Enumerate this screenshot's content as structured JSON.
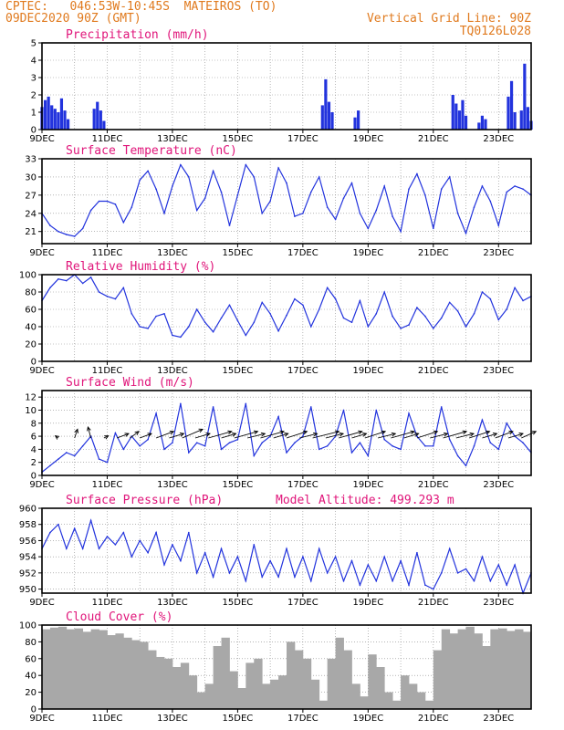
{
  "header": {
    "line1": "CPTEC:   046:53W-10:45S  MATEIROS (TO)",
    "line2": "09DEC2020 90Z (GMT)",
    "right1": "Vertical Grid Line: 90Z",
    "right2": "TQ0126L028"
  },
  "colors": {
    "header": "#e07a1e",
    "title": "#e0157a",
    "series": "#2233dd",
    "cloud": "#a8a8a8",
    "arrows": "#000000"
  },
  "chart_data": [
    {
      "type": "bar",
      "title": "Precipitation (mm/h)",
      "x_ticks": [
        "9DEC",
        "11DEC",
        "13DEC",
        "15DEC",
        "17DEC",
        "19DEC",
        "21DEC",
        "23DEC"
      ],
      "ylim": [
        0,
        5
      ],
      "y_ticks": [
        0,
        1,
        2,
        3,
        4,
        5
      ],
      "x": [
        9.0,
        9.1,
        9.2,
        9.3,
        9.4,
        9.5,
        9.6,
        9.7,
        9.8,
        10.6,
        10.7,
        10.8,
        10.9,
        17.6,
        17.7,
        17.8,
        17.9,
        18.6,
        18.7,
        21.6,
        21.7,
        21.8,
        21.9,
        22.0,
        22.4,
        22.5,
        22.6,
        23.3,
        23.4,
        23.5,
        23.7,
        23.8,
        23.9,
        24.0
      ],
      "values": [
        1.3,
        1.7,
        1.9,
        1.4,
        1.2,
        1.0,
        1.8,
        1.1,
        0.6,
        1.2,
        1.6,
        1.1,
        0.5,
        1.4,
        2.9,
        1.6,
        1.0,
        0.7,
        1.1,
        2.0,
        1.5,
        1.1,
        1.7,
        0.8,
        0.4,
        0.8,
        0.6,
        1.9,
        2.8,
        1.0,
        1.1,
        3.8,
        1.3,
        0.5
      ]
    },
    {
      "type": "line",
      "title": "Surface Temperature (nC)",
      "x_ticks": [
        "9DEC",
        "11DEC",
        "13DEC",
        "15DEC",
        "17DEC",
        "19DEC",
        "21DEC",
        "23DEC"
      ],
      "ylim": [
        19,
        33
      ],
      "y_ticks": [
        21,
        24,
        27,
        30,
        33
      ],
      "x": [
        9.0,
        9.25,
        9.5,
        9.75,
        10.0,
        10.25,
        10.5,
        10.75,
        11.0,
        11.25,
        11.5,
        11.75,
        12.0,
        12.25,
        12.5,
        12.75,
        13.0,
        13.25,
        13.5,
        13.75,
        14.0,
        14.25,
        14.5,
        14.75,
        15.0,
        15.25,
        15.5,
        15.75,
        16.0,
        16.25,
        16.5,
        16.75,
        17.0,
        17.25,
        17.5,
        17.75,
        18.0,
        18.25,
        18.5,
        18.75,
        19.0,
        19.25,
        19.5,
        19.75,
        20.0,
        20.25,
        20.5,
        20.75,
        21.0,
        21.25,
        21.5,
        21.75,
        22.0,
        22.25,
        22.5,
        22.75,
        23.0,
        23.25,
        23.5,
        23.75,
        24.0
      ],
      "values": [
        24,
        22,
        21,
        20.5,
        20.2,
        21.5,
        24.5,
        26,
        26,
        25.5,
        22.5,
        25,
        29.5,
        31,
        28,
        24,
        28.5,
        32,
        30,
        24.5,
        26.5,
        31,
        27.5,
        22,
        27,
        32,
        30,
        24,
        26,
        31.5,
        29,
        23.5,
        24,
        27.5,
        30,
        25,
        23,
        26.5,
        29,
        24,
        21.5,
        24.5,
        28.5,
        23.5,
        21,
        28,
        30.5,
        27,
        21.5,
        28,
        30,
        24,
        20.7,
        25,
        28.5,
        26,
        22,
        27.5,
        28.5,
        28,
        27
      ]
    },
    {
      "type": "line",
      "title": "Relative Humidity (%)",
      "x_ticks": [
        "9DEC",
        "11DEC",
        "13DEC",
        "15DEC",
        "17DEC",
        "19DEC",
        "21DEC",
        "23DEC"
      ],
      "ylim": [
        0,
        100
      ],
      "y_ticks": [
        0,
        20,
        40,
        60,
        80,
        100
      ],
      "x": [
        9.0,
        9.25,
        9.5,
        9.75,
        10.0,
        10.25,
        10.5,
        10.75,
        11.0,
        11.25,
        11.5,
        11.75,
        12.0,
        12.25,
        12.5,
        12.75,
        13.0,
        13.25,
        13.5,
        13.75,
        14.0,
        14.25,
        14.5,
        14.75,
        15.0,
        15.25,
        15.5,
        15.75,
        16.0,
        16.25,
        16.5,
        16.75,
        17.0,
        17.25,
        17.5,
        17.75,
        18.0,
        18.25,
        18.5,
        18.75,
        19.0,
        19.25,
        19.5,
        19.75,
        20.0,
        20.25,
        20.5,
        20.75,
        21.0,
        21.25,
        21.5,
        21.75,
        22.0,
        22.25,
        22.5,
        22.75,
        23.0,
        23.25,
        23.5,
        23.75,
        24.0
      ],
      "values": [
        70,
        85,
        95,
        93,
        100,
        90,
        97,
        80,
        75,
        72,
        85,
        55,
        40,
        38,
        52,
        55,
        30,
        28,
        40,
        60,
        45,
        34,
        50,
        65,
        47,
        30,
        45,
        68,
        55,
        35,
        53,
        72,
        65,
        40,
        60,
        85,
        72,
        50,
        45,
        70,
        40,
        55,
        80,
        52,
        38,
        42,
        62,
        52,
        38,
        50,
        68,
        58,
        40,
        55,
        80,
        72,
        48,
        60,
        85,
        70,
        75
      ]
    },
    {
      "type": "line",
      "title": "Surface Wind (m/s)",
      "x_ticks": [
        "9DEC",
        "11DEC",
        "13DEC",
        "15DEC",
        "17DEC",
        "19DEC",
        "21DEC",
        "23DEC"
      ],
      "ylim": [
        0,
        13
      ],
      "y_ticks": [
        0,
        2,
        4,
        6,
        8,
        10,
        12
      ],
      "x": [
        9.0,
        9.25,
        9.5,
        9.75,
        10.0,
        10.25,
        10.5,
        10.75,
        11.0,
        11.25,
        11.5,
        11.75,
        12.0,
        12.25,
        12.5,
        12.75,
        13.0,
        13.25,
        13.5,
        13.75,
        14.0,
        14.25,
        14.5,
        14.75,
        15.0,
        15.25,
        15.5,
        15.75,
        16.0,
        16.25,
        16.5,
        16.75,
        17.0,
        17.25,
        17.5,
        17.75,
        18.0,
        18.25,
        18.5,
        18.75,
        19.0,
        19.25,
        19.5,
        19.75,
        20.0,
        20.25,
        20.5,
        20.75,
        21.0,
        21.25,
        21.5,
        21.75,
        22.0,
        22.25,
        22.5,
        22.75,
        23.0,
        23.25,
        23.5,
        23.75,
        24.0
      ],
      "values": [
        0.5,
        1.5,
        2.5,
        3.5,
        3.0,
        4.5,
        6.0,
        2.5,
        2.0,
        6.5,
        4.0,
        6.0,
        4.5,
        5.5,
        9.5,
        4.0,
        5.0,
        11.0,
        3.5,
        5.0,
        4.5,
        10.5,
        4.0,
        5.0,
        5.5,
        11.0,
        3.0,
        5.0,
        6.0,
        9.0,
        3.5,
        5.0,
        6.0,
        10.5,
        4.0,
        4.5,
        6.0,
        10.0,
        3.5,
        5.0,
        3.0,
        10.0,
        5.5,
        4.5,
        4.0,
        9.5,
        6.0,
        4.5,
        4.5,
        10.5,
        5.5,
        3.0,
        1.5,
        4.5,
        8.5,
        5.0,
        4.0,
        8.0,
        6.0,
        5.0,
        3.5
      ],
      "arrows": {
        "x": [
          9.5,
          10.0,
          10.5,
          10.9,
          11.3,
          11.7,
          12.0,
          12.5,
          12.9,
          13.3,
          13.7,
          14.1,
          14.5,
          14.9,
          15.3,
          15.7,
          16.1,
          16.5,
          16.9,
          17.3,
          17.7,
          18.1,
          18.5,
          18.9,
          19.3,
          19.7,
          20.1,
          20.5,
          20.9,
          21.3,
          21.7,
          22.1,
          22.5,
          22.9,
          23.3,
          23.7
        ],
        "u": [
          -1,
          1,
          -1,
          1.5,
          4,
          3,
          4,
          6,
          5,
          7,
          5,
          8,
          5,
          8,
          6,
          8,
          5,
          7,
          6,
          9,
          6,
          8,
          5,
          7,
          6,
          8,
          5,
          7,
          6,
          8,
          6,
          7,
          5,
          6,
          5,
          5
        ],
        "v": [
          1,
          4,
          5,
          1,
          2,
          3,
          2,
          3,
          2,
          4,
          2,
          3,
          2,
          3,
          2,
          3,
          2,
          3,
          2,
          3,
          2,
          3,
          2,
          3,
          2,
          3,
          2,
          3,
          2,
          3,
          2,
          3,
          2,
          3,
          2,
          3
        ]
      }
    },
    {
      "type": "line",
      "title": "Surface Pressure (hPa)",
      "annotation": "Model Altitude: 499.293 m",
      "x_ticks": [
        "9DEC",
        "11DEC",
        "13DEC",
        "15DEC",
        "17DEC",
        "19DEC",
        "21DEC",
        "23DEC"
      ],
      "ylim": [
        949.5,
        960
      ],
      "y_ticks": [
        950,
        952,
        954,
        956,
        958,
        960
      ],
      "x": [
        9.0,
        9.25,
        9.5,
        9.75,
        10.0,
        10.25,
        10.5,
        10.75,
        11.0,
        11.25,
        11.5,
        11.75,
        12.0,
        12.25,
        12.5,
        12.75,
        13.0,
        13.25,
        13.5,
        13.75,
        14.0,
        14.25,
        14.5,
        14.75,
        15.0,
        15.25,
        15.5,
        15.75,
        16.0,
        16.25,
        16.5,
        16.75,
        17.0,
        17.25,
        17.5,
        17.75,
        18.0,
        18.25,
        18.5,
        18.75,
        19.0,
        19.25,
        19.5,
        19.75,
        20.0,
        20.25,
        20.5,
        20.75,
        21.0,
        21.25,
        21.5,
        21.75,
        22.0,
        22.25,
        22.5,
        22.75,
        23.0,
        23.25,
        23.5,
        23.75,
        24.0
      ],
      "values": [
        955,
        957,
        958,
        955,
        957.5,
        955,
        958.5,
        955,
        956.5,
        955.5,
        957,
        954,
        956,
        954.5,
        957,
        953,
        955.5,
        953.5,
        957,
        952,
        954.5,
        951.5,
        955,
        952,
        954,
        951,
        955.5,
        951.5,
        953.5,
        951.5,
        955,
        951.5,
        954,
        951,
        955,
        952,
        954,
        951,
        953.5,
        950.5,
        953,
        951,
        954,
        951,
        953.5,
        950.5,
        954.5,
        950.5,
        950,
        952,
        955,
        952,
        952.5,
        951,
        954,
        951,
        953,
        950.5,
        953,
        949.5,
        952
      ]
    },
    {
      "type": "area",
      "title": "Cloud Cover (%)",
      "x_ticks": [
        "9DEC",
        "11DEC",
        "13DEC",
        "15DEC",
        "17DEC",
        "19DEC",
        "21DEC",
        "23DEC"
      ],
      "ylim": [
        0,
        100
      ],
      "y_ticks": [
        0,
        20,
        40,
        60,
        80,
        100
      ],
      "x": [
        9.0,
        9.25,
        9.5,
        9.75,
        10.0,
        10.25,
        10.5,
        10.75,
        11.0,
        11.25,
        11.5,
        11.75,
        12.0,
        12.25,
        12.5,
        12.75,
        13.0,
        13.25,
        13.5,
        13.75,
        14.0,
        14.25,
        14.5,
        14.75,
        15.0,
        15.25,
        15.5,
        15.75,
        16.0,
        16.25,
        16.5,
        16.75,
        17.0,
        17.25,
        17.5,
        17.75,
        18.0,
        18.25,
        18.5,
        18.75,
        19.0,
        19.25,
        19.5,
        19.75,
        20.0,
        20.25,
        20.5,
        20.75,
        21.0,
        21.25,
        21.5,
        21.75,
        22.0,
        22.25,
        22.5,
        22.75,
        23.0,
        23.25,
        23.5,
        23.75,
        24.0
      ],
      "values": [
        95,
        97,
        98,
        95,
        96,
        92,
        95,
        94,
        88,
        90,
        85,
        82,
        80,
        70,
        62,
        60,
        50,
        55,
        40,
        20,
        30,
        75,
        85,
        45,
        25,
        55,
        60,
        30,
        35,
        40,
        80,
        70,
        60,
        35,
        10,
        60,
        85,
        70,
        30,
        15,
        65,
        50,
        20,
        10,
        40,
        30,
        20,
        10,
        70,
        95,
        90,
        95,
        98,
        90,
        75,
        95,
        96,
        93,
        95,
        92,
        95
      ]
    }
  ]
}
